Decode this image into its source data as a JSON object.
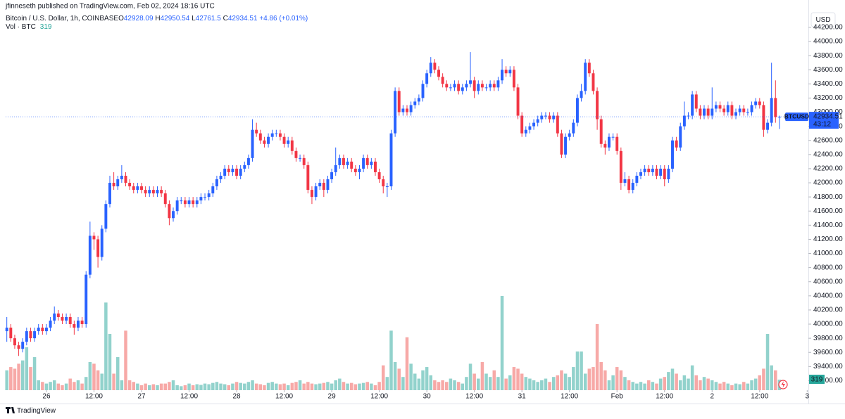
{
  "chart_data": {
    "type": "candlestick",
    "publisher": "jfinneseth published on TradingView.com, Feb 02, 2024 18:16 UTC",
    "symbol": "Bitcoin / U.S. Dollar, 1h, COINBASE",
    "ohlc_letters": [
      "O",
      "H",
      "L",
      "C"
    ],
    "change": "+4.86 (+0.01%)",
    "volume_title": "Vol · BTC",
    "currency_button": "USD",
    "ticker_tag": "BTCUSD",
    "countdown": "43:12",
    "brand": "TradingView",
    "up_color": "#2962ff",
    "down_color": "#f23645",
    "volume_up_color": "#92d2cc",
    "volume_down_color": "#f7a9a7",
    "grid": false,
    "xlim": [
      -0.3,
      202.3
    ],
    "xticks": [
      {
        "value": 10,
        "label": "26"
      },
      {
        "value": 22,
        "label": "12:00"
      },
      {
        "value": 34,
        "label": "27"
      },
      {
        "value": 46,
        "label": "12:00"
      },
      {
        "value": 58,
        "label": "28"
      },
      {
        "value": 70,
        "label": "12:00"
      },
      {
        "value": 82,
        "label": "29"
      },
      {
        "value": 94,
        "label": "12:00"
      },
      {
        "value": 106,
        "label": "30"
      },
      {
        "value": 118,
        "label": "12:00"
      },
      {
        "value": 130,
        "label": "31"
      },
      {
        "value": 142,
        "label": "12:00"
      },
      {
        "value": 154,
        "label": "Feb"
      },
      {
        "value": 166,
        "label": "12:00"
      },
      {
        "value": 178,
        "label": "2"
      },
      {
        "value": 190,
        "label": "12:00"
      },
      {
        "value": 202,
        "label": "3"
      }
    ],
    "ylim": [
      39065,
      44448
    ],
    "yticks": [
      {
        "value": 39200,
        "label": "39200.00"
      },
      {
        "value": 39400,
        "label": "39400.00"
      },
      {
        "value": 39600,
        "label": "39600.00"
      },
      {
        "value": 39800,
        "label": "39800.00"
      },
      {
        "value": 40000,
        "label": "40000.00"
      },
      {
        "value": 40200,
        "label": "40200.00"
      },
      {
        "value": 40400,
        "label": "40400.00"
      },
      {
        "value": 40600,
        "label": "40600.00"
      },
      {
        "value": 40800,
        "label": "40800.00"
      },
      {
        "value": 41000,
        "label": "41000.00"
      },
      {
        "value": 41200,
        "label": "41200.00"
      },
      {
        "value": 41400,
        "label": "41400.00"
      },
      {
        "value": 41600,
        "label": "41600.00"
      },
      {
        "value": 41800,
        "label": "41800.00"
      },
      {
        "value": 42000,
        "label": "42000.00"
      },
      {
        "value": 42200,
        "label": "42200.00"
      },
      {
        "value": 42400,
        "label": "42400.00"
      },
      {
        "value": 42600,
        "label": "42600.00"
      },
      {
        "value": 42800,
        "label": "42800.00"
      },
      {
        "value": 43000,
        "label": "43000.00"
      },
      {
        "value": 43200,
        "label": "43200.00"
      },
      {
        "value": 43400,
        "label": "43400.00"
      },
      {
        "value": 43600,
        "label": "43600.00"
      },
      {
        "value": 43800,
        "label": "43800.00"
      },
      {
        "value": 44000,
        "label": "44000.00"
      },
      {
        "value": 44200,
        "label": "44200.00"
      }
    ],
    "volume_ylim": [
      0,
      11500
    ],
    "open": [
      39900,
      39950,
      39800,
      39700,
      39650,
      39750,
      39900,
      39800,
      39900,
      39950,
      39900,
      39950,
      40050,
      40150,
      40100,
      40050,
      40100,
      40000,
      39950,
      40050,
      40000,
      40700,
      41250,
      41200,
      40950,
      41350,
      41700,
      42000,
      41950,
      42050,
      42100,
      42000,
      41950,
      41900,
      41950,
      41900,
      41850,
      41900,
      41850,
      41900,
      41850,
      41700,
      41500,
      41600,
      41750,
      41750,
      41700,
      41750,
      41700,
      41750,
      41800,
      41800,
      41850,
      41950,
      42050,
      42100,
      42200,
      42150,
      42200,
      42100,
      42200,
      42250,
      42350,
      42750,
      42700,
      42600,
      42550,
      42650,
      42700,
      42700,
      42650,
      42550,
      42600,
      42450,
      42350,
      42350,
      42250,
      41900,
      41800,
      41950,
      42000,
      41900,
      42050,
      42150,
      42250,
      42350,
      42250,
      42300,
      42200,
      42150,
      42200,
      42350,
      42250,
      42300,
      42150,
      42050,
      41950,
      41950,
      42700,
      43300,
      43000,
      43050,
      43000,
      43100,
      43150,
      43200,
      43400,
      43550,
      43700,
      43600,
      43500,
      43400,
      43350,
      43350,
      43400,
      43300,
      43350,
      43400,
      43450,
      43300,
      43400,
      43350,
      43350,
      43400,
      43350,
      43450,
      43600,
      43550,
      43600,
      43350,
      42950,
      42700,
      42750,
      42800,
      42850,
      42900,
      42950,
      42950,
      42900,
      42950,
      42700,
      42400,
      42650,
      42700,
      42850,
      43200,
      43300,
      43700,
      43550,
      43300,
      42900,
      42550,
      42500,
      42650,
      42650,
      42450,
      42000,
      42050,
      41900,
      42000,
      42100,
      42150,
      42200,
      42150,
      42200,
      42100,
      42200,
      42050,
      42200,
      42600,
      42500,
      42800,
      42950,
      42950,
      43250,
      43050,
      42950,
      43050,
      42950,
      43050,
      43100,
      43050,
      43000,
      43100,
      42950,
      43000,
      43050,
      43000,
      43000,
      43100,
      43150,
      43100,
      42750,
      42850,
      43200,
      42928.09
    ],
    "high": [
      40100,
      40000,
      39850,
      39750,
      39800,
      39950,
      39950,
      39950,
      40000,
      40000,
      40000,
      40100,
      40250,
      40200,
      40150,
      40150,
      40150,
      40050,
      40100,
      40100,
      40750,
      41450,
      41300,
      41250,
      41400,
      41750,
      42100,
      42150,
      42100,
      42250,
      42150,
      42050,
      42000,
      42000,
      42000,
      41950,
      41950,
      41950,
      41950,
      41950,
      41900,
      41750,
      41650,
      41800,
      41800,
      41800,
      41800,
      41800,
      41800,
      41850,
      41850,
      41900,
      42000,
      42100,
      42150,
      42250,
      42250,
      42250,
      42250,
      42250,
      42300,
      42400,
      42900,
      42850,
      42750,
      42650,
      42700,
      42750,
      42750,
      42750,
      42700,
      42650,
      42650,
      42500,
      42400,
      42400,
      42300,
      41950,
      42000,
      42050,
      42050,
      42100,
      42200,
      42500,
      42400,
      42400,
      42350,
      42350,
      42250,
      42250,
      42400,
      42400,
      42350,
      42350,
      42200,
      42100,
      42000,
      42750,
      43350,
      43350,
      43100,
      43100,
      43150,
      43200,
      43250,
      43450,
      43600,
      43780,
      43750,
      43650,
      43550,
      43450,
      43400,
      43450,
      43450,
      43400,
      43450,
      43850,
      43500,
      43450,
      43450,
      43400,
      43450,
      43450,
      43500,
      43750,
      43650,
      43650,
      43650,
      43400,
      43000,
      42800,
      42850,
      42900,
      42950,
      43000,
      43000,
      43000,
      43000,
      43000,
      42750,
      42700,
      42750,
      42900,
      43250,
      43400,
      43750,
      43750,
      43600,
      43350,
      42950,
      42600,
      42700,
      42700,
      42700,
      42500,
      42150,
      42100,
      42050,
      42150,
      42200,
      42250,
      42250,
      42250,
      42250,
      42250,
      42250,
      42250,
      42650,
      42650,
      42850,
      43150,
      43000,
      43300,
      43300,
      43100,
      43100,
      43100,
      43350,
      43150,
      43150,
      43100,
      43150,
      43150,
      43050,
      43100,
      43100,
      43050,
      43150,
      43200,
      43200,
      43150,
      42900,
      43700,
      43450,
      42950.54
    ],
    "low": [
      39750,
      39750,
      39650,
      39550,
      39600,
      39700,
      39750,
      39750,
      39850,
      39850,
      39850,
      39900,
      40000,
      40050,
      40000,
      40000,
      39950,
      39850,
      39900,
      39950,
      39950,
      40650,
      41050,
      40800,
      40900,
      41300,
      41650,
      41900,
      41900,
      42000,
      41950,
      41900,
      41850,
      41850,
      41850,
      41800,
      41800,
      41800,
      41800,
      41800,
      41650,
      41400,
      41450,
      41550,
      41700,
      41650,
      41650,
      41650,
      41650,
      41700,
      41750,
      41750,
      41800,
      41900,
      42000,
      42050,
      42100,
      42100,
      42050,
      42050,
      42150,
      42200,
      42300,
      42650,
      42550,
      42500,
      42500,
      42600,
      42650,
      42600,
      42500,
      42500,
      42400,
      42300,
      42300,
      42200,
      41850,
      41700,
      41750,
      41900,
      41800,
      41850,
      42000,
      42100,
      42200,
      42200,
      42200,
      42150,
      42100,
      42050,
      42150,
      42200,
      42200,
      42100,
      42000,
      41850,
      41800,
      41900,
      42650,
      42950,
      42950,
      42950,
      42950,
      43050,
      43100,
      43150,
      43350,
      43500,
      43550,
      43450,
      43350,
      43300,
      43300,
      43300,
      43250,
      43250,
      43300,
      43350,
      43200,
      43250,
      43300,
      43300,
      43300,
      43300,
      43300,
      43400,
      43500,
      43500,
      43300,
      42900,
      42650,
      42650,
      42700,
      42750,
      42800,
      42850,
      42900,
      42850,
      42850,
      42650,
      42350,
      42350,
      42600,
      42650,
      42800,
      43150,
      43250,
      43500,
      43250,
      42750,
      42500,
      42400,
      42450,
      42600,
      42400,
      41900,
      41950,
      41850,
      41850,
      41950,
      42050,
      42100,
      42100,
      42100,
      42050,
      42050,
      41950,
      42000,
      42150,
      42450,
      42450,
      42750,
      42900,
      42900,
      43000,
      42900,
      42900,
      42900,
      42900,
      43000,
      43000,
      42950,
      42950,
      42900,
      42900,
      42950,
      42950,
      42950,
      42950,
      43050,
      43050,
      42650,
      42700,
      42800,
      42850,
      42761.5
    ],
    "close": [
      39950,
      39800,
      39700,
      39650,
      39750,
      39900,
      39800,
      39900,
      39950,
      39900,
      39950,
      40050,
      40150,
      40100,
      40050,
      40100,
      40000,
      39950,
      40050,
      40000,
      40700,
      41250,
      41200,
      40950,
      41350,
      41700,
      42000,
      41950,
      42050,
      42100,
      42000,
      41950,
      41900,
      41950,
      41900,
      41850,
      41900,
      41850,
      41900,
      41850,
      41700,
      41500,
      41600,
      41750,
      41750,
      41700,
      41750,
      41700,
      41750,
      41800,
      41800,
      41850,
      41950,
      42050,
      42100,
      42200,
      42150,
      42200,
      42100,
      42200,
      42250,
      42350,
      42750,
      42700,
      42600,
      42550,
      42650,
      42700,
      42700,
      42650,
      42550,
      42600,
      42450,
      42350,
      42350,
      42250,
      41900,
      41800,
      41950,
      42000,
      41900,
      42050,
      42150,
      42250,
      42350,
      42250,
      42300,
      42200,
      42150,
      42200,
      42350,
      42250,
      42300,
      42150,
      42050,
      41950,
      41950,
      42700,
      43300,
      43000,
      43050,
      43000,
      43100,
      43150,
      43200,
      43400,
      43550,
      43700,
      43600,
      43500,
      43400,
      43350,
      43350,
      43400,
      43300,
      43350,
      43400,
      43450,
      43300,
      43400,
      43350,
      43350,
      43400,
      43350,
      43450,
      43600,
      43550,
      43600,
      43350,
      42950,
      42700,
      42750,
      42800,
      42850,
      42900,
      42950,
      42950,
      42900,
      42950,
      42700,
      42400,
      42650,
      42700,
      42850,
      43200,
      43300,
      43700,
      43550,
      43300,
      42900,
      42550,
      42500,
      42650,
      42650,
      42450,
      42000,
      42050,
      41900,
      42000,
      42100,
      42150,
      42200,
      42150,
      42200,
      42100,
      42200,
      42050,
      42200,
      42600,
      42500,
      42800,
      42950,
      42950,
      43250,
      43050,
      42950,
      43050,
      42950,
      43050,
      43100,
      43050,
      43000,
      43100,
      42950,
      43000,
      43050,
      43000,
      43000,
      43100,
      43150,
      43100,
      42750,
      42850,
      43200,
      42929.65,
      42934.51
    ],
    "volume": [
      600,
      700,
      650,
      800,
      900,
      1300,
      700,
      1000,
      300,
      250,
      200,
      250,
      300,
      200,
      150,
      200,
      350,
      250,
      300,
      200,
      400,
      850,
      800,
      600,
      500,
      2650,
      1700,
      500,
      1000,
      300,
      1800,
      300,
      250,
      200,
      150,
      200,
      150,
      180,
      150,
      200,
      200,
      250,
      300,
      150,
      120,
      150,
      200,
      150,
      180,
      160,
      200,
      180,
      220,
      250,
      200,
      180,
      150,
      200,
      250,
      220,
      200,
      250,
      300,
      200,
      180,
      150,
      220,
      250,
      200,
      180,
      200,
      150,
      220,
      250,
      300,
      200,
      250,
      200,
      180,
      200,
      220,
      250,
      200,
      300,
      350,
      250,
      200,
      220,
      180,
      200,
      220,
      250,
      200,
      150,
      250,
      750,
      400,
      1800,
      850,
      650,
      400,
      1600,
      800,
      500,
      350,
      600,
      700,
      450,
      300,
      250,
      300,
      250,
      350,
      300,
      250,
      200,
      400,
      800,
      500,
      350,
      850,
      500,
      400,
      600,
      400,
      2850,
      350,
      450,
      700,
      650,
      500,
      400,
      350,
      300,
      250,
      300,
      350,
      250,
      400,
      450,
      600,
      500,
      400,
      700,
      1170,
      1170,
      500,
      650,
      700,
      2000,
      850,
      600,
      300,
      450,
      700,
      600,
      400,
      300,
      250,
      200,
      250,
      200,
      300,
      250,
      200,
      350,
      400,
      550,
      650,
      500,
      300,
      450,
      350,
      750,
      450,
      300,
      400,
      350,
      300,
      250,
      200,
      250,
      200,
      150,
      200,
      180,
      250,
      200,
      300,
      350,
      450,
      650,
      1700,
      750,
      600,
      319
    ]
  }
}
